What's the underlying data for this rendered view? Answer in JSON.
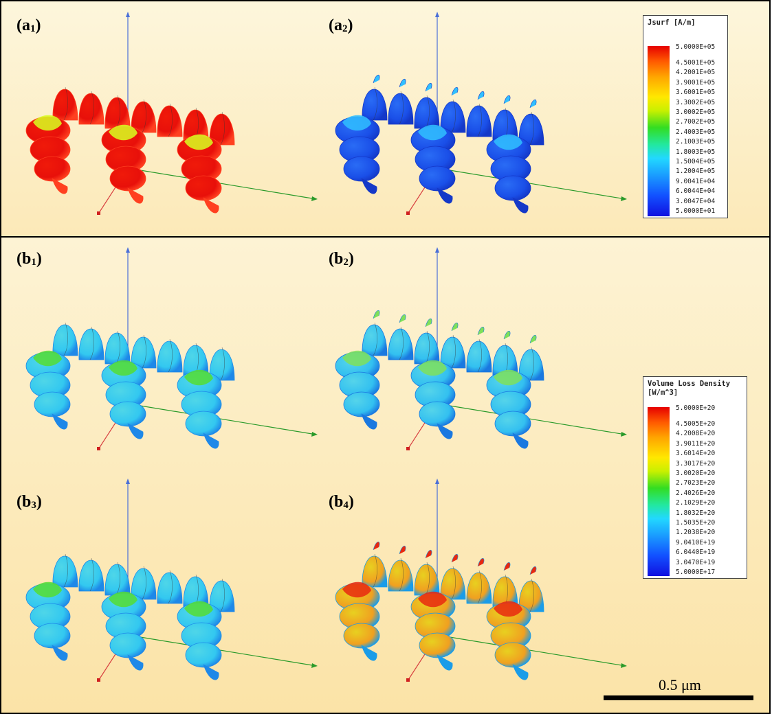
{
  "panels": {
    "a1": {
      "label": "(a",
      "sub": "1",
      "close": ")"
    },
    "a2": {
      "label": "(a",
      "sub": "2",
      "close": ")"
    },
    "b1": {
      "label": "(b",
      "sub": "1",
      "close": ")"
    },
    "b2": {
      "label": "(b",
      "sub": "2",
      "close": ")"
    },
    "b3": {
      "label": "(b",
      "sub": "3",
      "close": ")"
    },
    "b4": {
      "label": "(b",
      "sub": "4",
      "close": ")"
    }
  },
  "legend_jsurf": {
    "title": "Jsurf [A/m]",
    "ticks": [
      "5.0000E+05",
      "4.5001E+05",
      "4.2001E+05",
      "3.9001E+05",
      "3.6001E+05",
      "3.3002E+05",
      "3.0002E+05",
      "2.7002E+05",
      "2.4003E+05",
      "2.1003E+05",
      "1.8003E+05",
      "1.5004E+05",
      "1.2004E+05",
      "9.0041E+04",
      "6.0044E+04",
      "3.0047E+04",
      "5.0000E+01"
    ]
  },
  "legend_vld": {
    "title": "Volume Loss Density\n[W/m^3]",
    "ticks": [
      "5.0000E+20",
      "4.5005E+20",
      "4.2008E+20",
      "3.9011E+20",
      "3.6014E+20",
      "3.3017E+20",
      "3.0020E+20",
      "2.7023E+20",
      "2.4026E+20",
      "2.1029E+20",
      "1.8032E+20",
      "1.5035E+20",
      "1.2038E+20",
      "9.0410E+19",
      "6.0440E+19",
      "3.0470E+19",
      "5.0000E+17"
    ]
  },
  "scale": {
    "label": "0.5 μm"
  },
  "colors": {
    "a1": [
      "#e8100a",
      "#f01a0a",
      "#ff4020",
      "#d8ff20"
    ],
    "a2": [
      "#1a4fe8",
      "#2a6cf5",
      "#1438c8",
      "#30c0ff"
    ],
    "b1": [
      "#33c8f0",
      "#4fd6e8",
      "#1e88e8",
      "#55dd33"
    ],
    "b2": [
      "#33c0f0",
      "#55d4ea",
      "#1a78e0",
      "#7fe05a"
    ],
    "b3": [
      "#33c8f0",
      "#4fd6e8",
      "#1e88e8",
      "#55dd33"
    ],
    "b4": [
      "#f0a020",
      "#e8d020",
      "#1a9ce8",
      "#e82810"
    ]
  }
}
